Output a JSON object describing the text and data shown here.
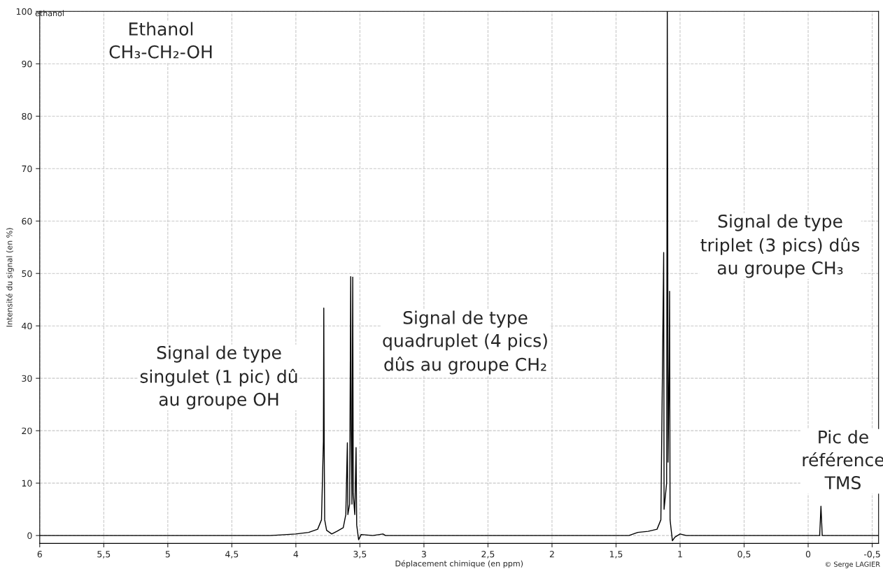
{
  "chart_data": {
    "type": "line",
    "xlabel": "Déplacement chimique (en ppm)",
    "ylabel": "Intensité du signal (en %)",
    "x": [
      6.0,
      4.2,
      4.0,
      3.9,
      3.83,
      3.8,
      3.785,
      3.782,
      3.779,
      3.775,
      3.76,
      3.72,
      3.68,
      3.63,
      3.61,
      3.598,
      3.594,
      3.58,
      3.572,
      3.568,
      3.562,
      3.556,
      3.552,
      3.54,
      3.53,
      3.525,
      3.51,
      3.49,
      3.4,
      3.32,
      3.3,
      1.4,
      1.33,
      1.25,
      1.18,
      1.15,
      1.13,
      1.128,
      1.125,
      1.105,
      1.1,
      1.097,
      1.094,
      1.085,
      1.082,
      1.078,
      1.06,
      1.04,
      1.0,
      0.95,
      -0.09,
      -0.1,
      -0.11,
      -0.55
    ],
    "series": [
      {
        "color": "#000000",
        "values": [
          0,
          0,
          0.3,
          0.6,
          1.2,
          3,
          18,
          43.4,
          17.8,
          3,
          1,
          0.3,
          0.8,
          1.5,
          4,
          17.7,
          4,
          6,
          49.4,
          20,
          6,
          49.3,
          8,
          4,
          16.8,
          2,
          -0.8,
          0.2,
          0,
          0.3,
          0,
          0,
          0.6,
          0.8,
          1.2,
          3,
          49.3,
          54,
          5,
          10,
          100,
          68.4,
          14,
          32.5,
          46.6,
          3,
          -1.0,
          -0.3,
          0.3,
          0,
          0,
          5.6,
          0,
          0
        ]
      }
    ],
    "xlim": [
      6.0,
      -0.55
    ],
    "ylim": [
      -1.5,
      100
    ],
    "xticks": [
      6,
      {
        "value": 5.5,
        "label": "5,5"
      },
      5,
      {
        "value": 4.5,
        "label": "4,5"
      },
      4,
      {
        "value": 3.5,
        "label": "3,5"
      },
      3,
      {
        "value": 2.5,
        "label": "2,5"
      },
      2,
      {
        "value": 1.5,
        "label": "1,5"
      },
      1,
      {
        "value": 0.5,
        "label": "0,5"
      },
      0,
      {
        "value": -0.5,
        "label": "-0,5"
      }
    ],
    "yticks": [
      0,
      10,
      20,
      30,
      40,
      50,
      60,
      70,
      80,
      90,
      100
    ],
    "grid": true,
    "marker": "none",
    "line_style": "solid",
    "annotations": [
      "ethanol",
      "Ethanol\nCH₃-CH₂-OH",
      "Signal de type\nsingulet (1 pic) dû\nau groupe OH",
      "Signal de type\nquadruplet (4 pics)\ndûs au groupe CH₂",
      "Signal de type\ntriplet (3 pics) dûs\nau groupe CH₃",
      "Pic de\nréférence\nTMS",
      "© Serge LAGIER"
    ]
  }
}
